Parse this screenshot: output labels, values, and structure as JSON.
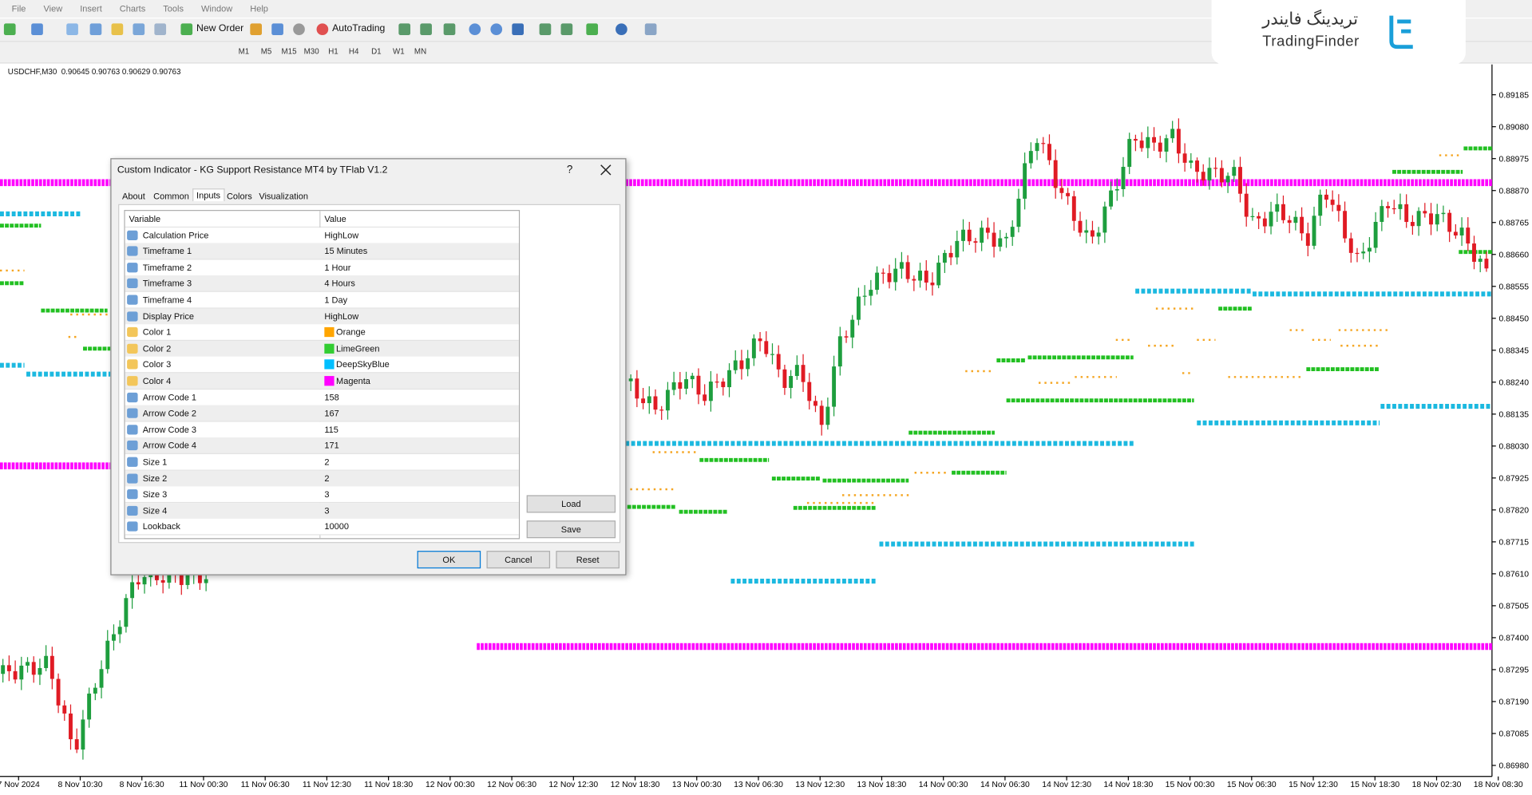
{
  "menu": [
    "File",
    "View",
    "Insert",
    "Charts",
    "Tools",
    "Window",
    "Help"
  ],
  "toolbar": {
    "new_order": "New Order",
    "auto_trading": "AutoTrading",
    "timeframes": [
      "M1",
      "M5",
      "M15",
      "M30",
      "H1",
      "H4",
      "D1",
      "W1",
      "MN"
    ]
  },
  "chart": {
    "symbol_info": "USDCHF,M30  0.90645 0.90763 0.90629 0.90763",
    "price_labels": [
      "0.89185",
      "0.89080",
      "0.88975",
      "0.88870",
      "0.88765",
      "0.88660",
      "0.88555",
      "0.88450",
      "0.88345",
      "0.88240",
      "0.88135",
      "0.88030",
      "0.87925",
      "0.87820",
      "0.87715",
      "0.87610",
      "0.87505",
      "0.87400",
      "0.87295",
      "0.87190",
      "0.87085",
      "0.86980"
    ],
    "time_labels": [
      "7 Nov 2024",
      "8 Nov 10:30",
      "8 Nov 16:30",
      "11 Nov 00:30",
      "11 Nov 06:30",
      "11 Nov 12:30",
      "11 Nov 18:30",
      "12 Nov 00:30",
      "12 Nov 06:30",
      "12 Nov 12:30",
      "12 Nov 18:30",
      "13 Nov 00:30",
      "13 Nov 06:30",
      "13 Nov 12:30",
      "13 Nov 18:30",
      "14 Nov 00:30",
      "14 Nov 06:30",
      "14 Nov 12:30",
      "14 Nov 18:30",
      "15 Nov 00:30",
      "15 Nov 06:30",
      "15 Nov 12:30",
      "15 Nov 18:30",
      "18 Nov 02:30",
      "18 Nov 08:30"
    ]
  },
  "watermark": {
    "arabic": "تریدینگ فایندر",
    "latin": "TradingFinder"
  },
  "dialog": {
    "title": "Custom Indicator - KG Support Resistance MT4 by TFlab V1.2",
    "help": "?",
    "tabs": [
      "About",
      "Common",
      "Inputs",
      "Colors",
      "Visualization"
    ],
    "active_tab": "Inputs",
    "columns": [
      "Variable",
      "Value"
    ],
    "rows": [
      [
        "Calculation Price",
        "HighLow"
      ],
      [
        "Timeframe 1",
        "15 Minutes"
      ],
      [
        "Timeframe 2",
        "1 Hour"
      ],
      [
        "Timeframe 3",
        "4 Hours"
      ],
      [
        "Timeframe 4",
        "1 Day"
      ],
      [
        "Display Price",
        "HighLow"
      ],
      [
        "Color 1",
        "Orange"
      ],
      [
        "Color 2",
        "LimeGreen"
      ],
      [
        "Color 3",
        "DeepSkyBlue"
      ],
      [
        "Color 4",
        "Magenta"
      ],
      [
        "Arrow Code 1",
        "158"
      ],
      [
        "Arrow Code 2",
        "167"
      ],
      [
        "Arrow Code 3",
        "115"
      ],
      [
        "Arrow Code 4",
        "171"
      ],
      [
        "Size 1",
        "2"
      ],
      [
        "Size 2",
        "2"
      ],
      [
        "Size 3",
        "3"
      ],
      [
        "Size 4",
        "3"
      ],
      [
        "Lookback",
        "10000"
      ]
    ],
    "side_buttons": [
      "Load",
      "Save"
    ],
    "buttons": [
      "OK",
      "Cancel",
      "Reset"
    ]
  }
}
